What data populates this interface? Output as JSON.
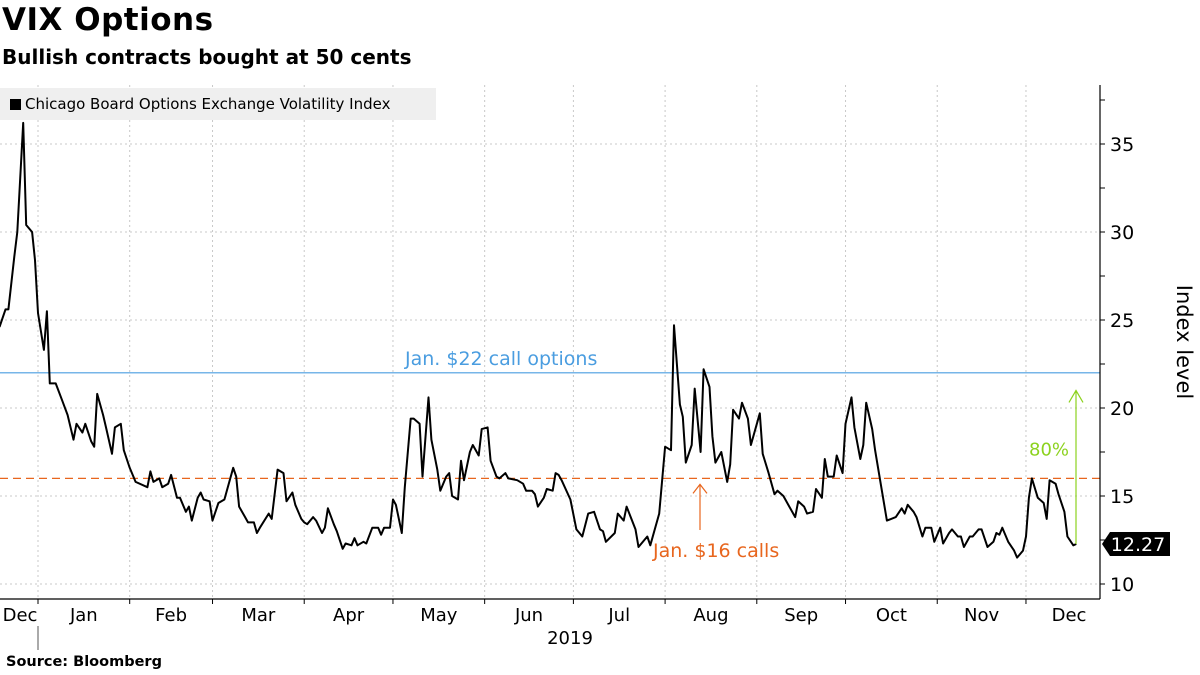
{
  "header": {
    "title": "VIX Options",
    "subtitle": "Bullish contracts bought at 50 cents"
  },
  "footer": {
    "source": "Source: Bloomberg"
  },
  "chart_data": {
    "type": "line",
    "title": "VIX Options",
    "subtitle": "Bullish contracts bought at 50 cents",
    "ylabel": "Index level",
    "xlabel": "",
    "y_axis_side": "right",
    "ylim": [
      9,
      38.5
    ],
    "yticks": [
      10,
      15,
      20,
      25,
      30,
      35
    ],
    "grid": true,
    "legend_position": "top-left",
    "x_tick_labels": [
      "Dec",
      "Jan",
      "Feb",
      "Mar",
      "Apr",
      "May",
      "Jun",
      "Jul",
      "Aug",
      "Sep",
      "Oct",
      "Nov",
      "Dec"
    ],
    "x_year_label": "2019",
    "colors": {
      "series": "#000000",
      "call22": "#4a9de0",
      "call16": "#e8661e",
      "pct": "#8cd21e"
    },
    "series": [
      {
        "name": "Chicago Board Options Exchange Volatility Index",
        "last_value_label": "12.27",
        "points": [
          [
            "2018-12-19",
            24.6
          ],
          [
            "2018-12-21",
            25.6
          ],
          [
            "2018-12-22",
            25.6
          ],
          [
            "2018-12-24",
            28.6
          ],
          [
            "2018-12-25",
            30.0
          ],
          [
            "2018-12-27",
            36.2
          ],
          [
            "2018-12-28",
            30.4
          ],
          [
            "2018-12-30",
            30.0
          ],
          [
            "2018-12-31",
            28.4
          ],
          [
            "2019-01-01",
            25.4
          ],
          [
            "2019-01-03",
            23.3
          ],
          [
            "2019-01-04",
            25.5
          ],
          [
            "2019-01-05",
            21.4
          ],
          [
            "2019-01-07",
            21.4
          ],
          [
            "2019-01-09",
            20.5
          ],
          [
            "2019-01-11",
            19.6
          ],
          [
            "2019-01-13",
            18.2
          ],
          [
            "2019-01-14",
            19.1
          ],
          [
            "2019-01-16",
            18.6
          ],
          [
            "2019-01-17",
            19.1
          ],
          [
            "2019-01-19",
            18.1
          ],
          [
            "2019-01-20",
            17.8
          ],
          [
            "2019-01-21",
            20.8
          ],
          [
            "2019-01-23",
            19.6
          ],
          [
            "2019-01-24",
            18.9
          ],
          [
            "2019-01-26",
            17.4
          ],
          [
            "2019-01-27",
            18.9
          ],
          [
            "2019-01-29",
            19.1
          ],
          [
            "2019-01-30",
            17.6
          ],
          [
            "2019-02-01",
            16.6
          ],
          [
            "2019-02-03",
            15.8
          ],
          [
            "2019-02-07",
            15.5
          ],
          [
            "2019-02-08",
            16.4
          ],
          [
            "2019-02-09",
            15.8
          ],
          [
            "2019-02-11",
            16.0
          ],
          [
            "2019-02-12",
            15.5
          ],
          [
            "2019-02-14",
            15.7
          ],
          [
            "2019-02-15",
            16.2
          ],
          [
            "2019-02-17",
            14.9
          ],
          [
            "2019-02-18",
            14.9
          ],
          [
            "2019-02-20",
            14.1
          ],
          [
            "2019-02-21",
            14.4
          ],
          [
            "2019-02-22",
            13.6
          ],
          [
            "2019-02-24",
            14.9
          ],
          [
            "2019-02-25",
            15.2
          ],
          [
            "2019-02-26",
            14.8
          ],
          [
            "2019-02-28",
            14.7
          ],
          [
            "2019-03-01",
            13.6
          ],
          [
            "2019-03-03",
            14.6
          ],
          [
            "2019-03-05",
            14.8
          ],
          [
            "2019-03-08",
            16.6
          ],
          [
            "2019-03-09",
            16.1
          ],
          [
            "2019-03-10",
            14.4
          ],
          [
            "2019-03-12",
            13.8
          ],
          [
            "2019-03-13",
            13.5
          ],
          [
            "2019-03-15",
            13.5
          ],
          [
            "2019-03-16",
            12.9
          ],
          [
            "2019-03-17",
            13.2
          ],
          [
            "2019-03-20",
            14.0
          ],
          [
            "2019-03-21",
            13.7
          ],
          [
            "2019-03-23",
            16.5
          ],
          [
            "2019-03-25",
            16.3
          ],
          [
            "2019-03-26",
            14.7
          ],
          [
            "2019-03-28",
            15.2
          ],
          [
            "2019-03-29",
            14.5
          ],
          [
            "2019-03-31",
            13.7
          ],
          [
            "2019-04-01",
            13.5
          ],
          [
            "2019-04-02",
            13.4
          ],
          [
            "2019-04-04",
            13.8
          ],
          [
            "2019-04-05",
            13.6
          ],
          [
            "2019-04-07",
            12.9
          ],
          [
            "2019-04-08",
            13.2
          ],
          [
            "2019-04-09",
            14.3
          ],
          [
            "2019-04-11",
            13.4
          ],
          [
            "2019-04-12",
            13.0
          ],
          [
            "2019-04-14",
            12.0
          ],
          [
            "2019-04-15",
            12.3
          ],
          [
            "2019-04-17",
            12.2
          ],
          [
            "2019-04-18",
            12.6
          ],
          [
            "2019-04-19",
            12.2
          ],
          [
            "2019-04-21",
            12.4
          ],
          [
            "2019-04-22",
            12.3
          ],
          [
            "2019-04-24",
            13.2
          ],
          [
            "2019-04-26",
            13.2
          ],
          [
            "2019-04-27",
            12.8
          ],
          [
            "2019-04-28",
            13.2
          ],
          [
            "2019-04-30",
            13.2
          ],
          [
            "2019-05-01",
            14.8
          ],
          [
            "2019-05-02",
            14.5
          ],
          [
            "2019-05-04",
            12.9
          ],
          [
            "2019-05-05",
            15.5
          ],
          [
            "2019-05-07",
            19.4
          ],
          [
            "2019-05-08",
            19.4
          ],
          [
            "2019-05-10",
            19.1
          ],
          [
            "2019-05-11",
            16.1
          ],
          [
            "2019-05-13",
            20.6
          ],
          [
            "2019-05-14",
            18.2
          ],
          [
            "2019-05-16",
            16.5
          ],
          [
            "2019-05-17",
            15.3
          ],
          [
            "2019-05-19",
            16.1
          ],
          [
            "2019-05-20",
            16.3
          ],
          [
            "2019-05-21",
            15.0
          ],
          [
            "2019-05-23",
            14.8
          ],
          [
            "2019-05-24",
            17.0
          ],
          [
            "2019-05-25",
            15.9
          ],
          [
            "2019-05-27",
            17.5
          ],
          [
            "2019-05-28",
            17.9
          ],
          [
            "2019-05-30",
            17.3
          ],
          [
            "2019-05-31",
            18.8
          ],
          [
            "2019-06-02",
            18.9
          ],
          [
            "2019-06-03",
            17.0
          ],
          [
            "2019-06-05",
            16.1
          ],
          [
            "2019-06-06",
            16.0
          ],
          [
            "2019-06-08",
            16.3
          ],
          [
            "2019-06-09",
            16.0
          ],
          [
            "2019-06-12",
            15.9
          ],
          [
            "2019-06-14",
            15.7
          ],
          [
            "2019-06-15",
            15.3
          ],
          [
            "2019-06-17",
            15.3
          ],
          [
            "2019-06-18",
            15.1
          ],
          [
            "2019-06-19",
            14.4
          ],
          [
            "2019-06-21",
            14.9
          ],
          [
            "2019-06-22",
            15.4
          ],
          [
            "2019-06-24",
            15.3
          ],
          [
            "2019-06-25",
            16.3
          ],
          [
            "2019-06-26",
            16.2
          ],
          [
            "2019-06-27",
            15.9
          ],
          [
            "2019-06-30",
            14.8
          ],
          [
            "2019-07-02",
            13.1
          ],
          [
            "2019-07-04",
            12.7
          ],
          [
            "2019-07-06",
            14.0
          ],
          [
            "2019-07-08",
            14.1
          ],
          [
            "2019-07-10",
            13.1
          ],
          [
            "2019-07-11",
            13.0
          ],
          [
            "2019-07-12",
            12.4
          ],
          [
            "2019-07-15",
            12.9
          ],
          [
            "2019-07-16",
            14.0
          ],
          [
            "2019-07-18",
            13.6
          ],
          [
            "2019-07-19",
            14.4
          ],
          [
            "2019-07-22",
            13.1
          ],
          [
            "2019-07-23",
            12.1
          ],
          [
            "2019-07-26",
            12.7
          ],
          [
            "2019-07-27",
            12.2
          ],
          [
            "2019-07-30",
            14.0
          ],
          [
            "2019-08-01",
            17.8
          ],
          [
            "2019-08-03",
            17.6
          ],
          [
            "2019-08-04",
            24.7
          ],
          [
            "2019-08-06",
            20.2
          ],
          [
            "2019-08-07",
            19.5
          ],
          [
            "2019-08-08",
            16.9
          ],
          [
            "2019-08-10",
            17.9
          ],
          [
            "2019-08-11",
            21.1
          ],
          [
            "2019-08-13",
            17.5
          ],
          [
            "2019-08-14",
            22.2
          ],
          [
            "2019-08-16",
            21.2
          ],
          [
            "2019-08-17",
            18.4
          ],
          [
            "2019-08-18",
            16.9
          ],
          [
            "2019-08-20",
            17.5
          ],
          [
            "2019-08-22",
            15.8
          ],
          [
            "2019-08-23",
            16.8
          ],
          [
            "2019-08-24",
            19.9
          ],
          [
            "2019-08-26",
            19.4
          ],
          [
            "2019-08-27",
            20.3
          ],
          [
            "2019-08-29",
            19.4
          ],
          [
            "2019-08-30",
            17.9
          ],
          [
            "2019-09-02",
            19.7
          ],
          [
            "2019-09-03",
            17.4
          ],
          [
            "2019-09-05",
            16.3
          ],
          [
            "2019-09-07",
            15.1
          ],
          [
            "2019-09-08",
            15.3
          ],
          [
            "2019-09-10",
            15.0
          ],
          [
            "2019-09-12",
            14.4
          ],
          [
            "2019-09-14",
            13.8
          ],
          [
            "2019-09-15",
            14.7
          ],
          [
            "2019-09-17",
            14.4
          ],
          [
            "2019-09-18",
            14.0
          ],
          [
            "2019-09-20",
            14.1
          ],
          [
            "2019-09-21",
            15.4
          ],
          [
            "2019-09-23",
            14.9
          ],
          [
            "2019-09-24",
            17.1
          ],
          [
            "2019-09-25",
            16.1
          ],
          [
            "2019-09-27",
            16.1
          ],
          [
            "2019-09-28",
            17.3
          ],
          [
            "2019-09-30",
            16.3
          ],
          [
            "2019-10-01",
            19.1
          ],
          [
            "2019-10-03",
            20.6
          ],
          [
            "2019-10-04",
            18.9
          ],
          [
            "2019-10-06",
            17.1
          ],
          [
            "2019-10-07",
            17.9
          ],
          [
            "2019-10-08",
            20.3
          ],
          [
            "2019-10-10",
            18.8
          ],
          [
            "2019-10-11",
            17.6
          ],
          [
            "2019-10-13",
            15.6
          ],
          [
            "2019-10-15",
            13.6
          ],
          [
            "2019-10-18",
            13.8
          ],
          [
            "2019-10-20",
            14.3
          ],
          [
            "2019-10-21",
            14.0
          ],
          [
            "2019-10-22",
            14.5
          ],
          [
            "2019-10-24",
            14.1
          ],
          [
            "2019-10-25",
            13.8
          ],
          [
            "2019-10-27",
            12.7
          ],
          [
            "2019-10-28",
            13.2
          ],
          [
            "2019-10-30",
            13.2
          ],
          [
            "2019-10-31",
            12.4
          ],
          [
            "2019-11-02",
            13.2
          ],
          [
            "2019-11-03",
            12.3
          ],
          [
            "2019-11-05",
            12.9
          ],
          [
            "2019-11-06",
            13.1
          ],
          [
            "2019-11-08",
            12.7
          ],
          [
            "2019-11-09",
            12.7
          ],
          [
            "2019-11-10",
            12.1
          ],
          [
            "2019-11-12",
            12.7
          ],
          [
            "2019-11-13",
            12.7
          ],
          [
            "2019-11-15",
            13.1
          ],
          [
            "2019-11-16",
            13.1
          ],
          [
            "2019-11-18",
            12.1
          ],
          [
            "2019-11-20",
            12.4
          ],
          [
            "2019-11-21",
            12.9
          ],
          [
            "2019-11-22",
            12.8
          ],
          [
            "2019-11-23",
            13.2
          ],
          [
            "2019-11-25",
            12.4
          ],
          [
            "2019-11-27",
            11.9
          ],
          [
            "2019-11-28",
            11.5
          ],
          [
            "2019-11-30",
            11.9
          ],
          [
            "2019-12-01",
            12.7
          ],
          [
            "2019-12-02",
            14.9
          ],
          [
            "2019-12-03",
            16.0
          ],
          [
            "2019-12-05",
            14.9
          ],
          [
            "2019-12-07",
            14.6
          ],
          [
            "2019-12-08",
            13.7
          ],
          [
            "2019-12-09",
            15.9
          ],
          [
            "2019-12-11",
            15.7
          ],
          [
            "2019-12-12",
            15.1
          ],
          [
            "2019-12-14",
            14.1
          ],
          [
            "2019-12-15",
            12.7
          ],
          [
            "2019-12-17",
            12.2
          ],
          [
            "2019-12-18",
            12.27
          ]
        ]
      }
    ],
    "annotations": {
      "call22": {
        "label": "Jan. $22 call options",
        "value": 22
      },
      "call16": {
        "label": "Jan. $16 calls",
        "value": 16
      },
      "pct": {
        "label": "80%",
        "from": 12.27,
        "to": 21
      }
    }
  }
}
